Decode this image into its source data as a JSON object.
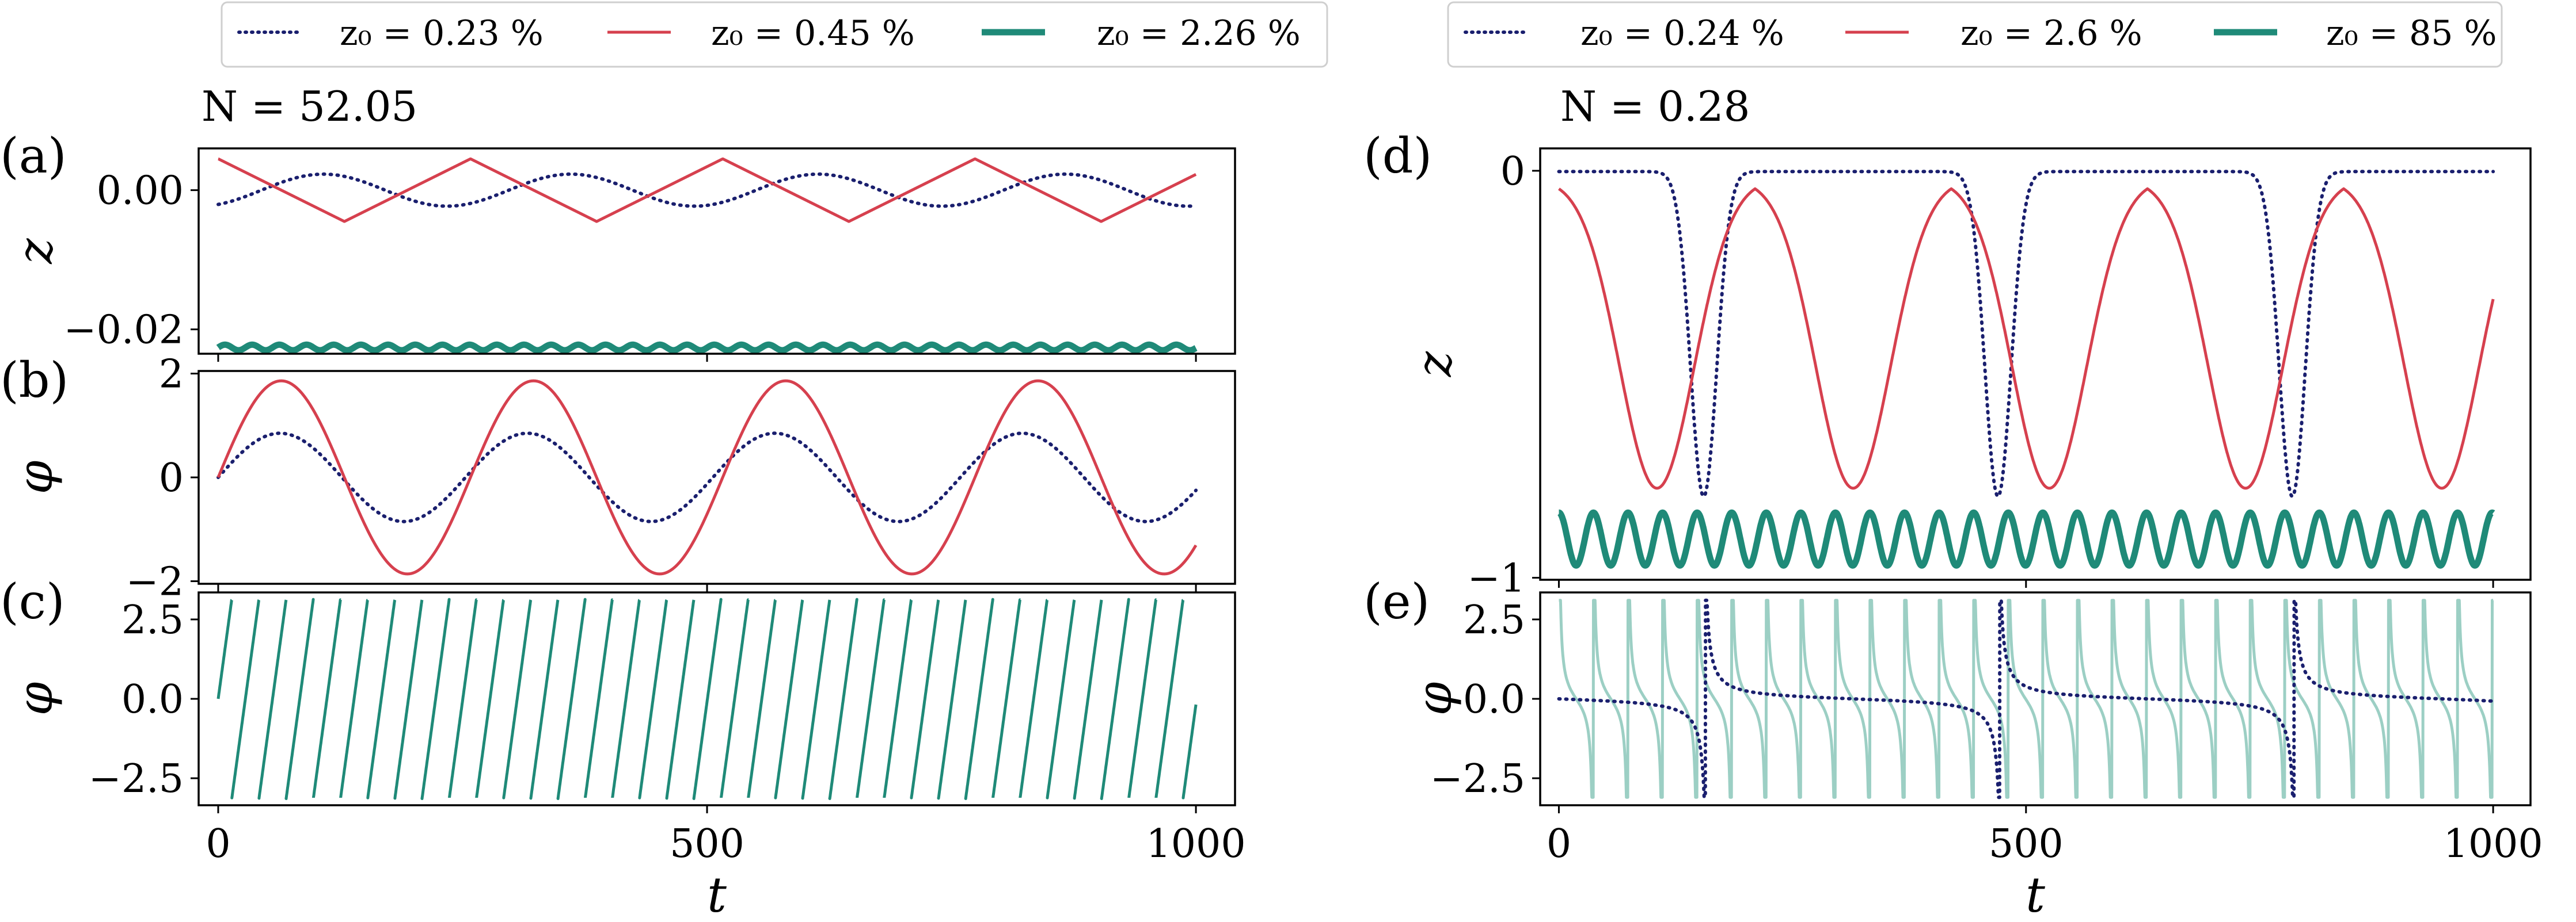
{
  "colors": {
    "navy": "#1a1f6e",
    "red": "#d6404e",
    "teal": "#1f8a78",
    "teal_light": "#9ccfc4"
  },
  "legends": [
    {
      "entries": [
        {
          "label": "z₀ = 0.23 %",
          "color": "#1a1f6e",
          "style": "dotted"
        },
        {
          "label": "z₀ = 0.45 %",
          "color": "#d6404e",
          "style": "solid"
        },
        {
          "label": "z₀ = 2.26 %",
          "color": "#1f8a78",
          "style": "thick"
        }
      ]
    },
    {
      "entries": [
        {
          "label": "z₀ = 0.24 %",
          "color": "#1a1f6e",
          "style": "dotted"
        },
        {
          "label": "z₀ = 2.6 %",
          "color": "#d6404e",
          "style": "solid"
        },
        {
          "label": "z₀ = 85 %",
          "color": "#1f8a78",
          "style": "thick"
        }
      ]
    }
  ],
  "n_labels": [
    "N = 52.05",
    "N = 0.28"
  ],
  "chart_data": [
    {
      "panel": "(a)",
      "type": "line",
      "xlabel": "",
      "ylabel": "z",
      "xlim": [
        -20,
        1040
      ],
      "ylim": [
        -0.0235,
        0.006
      ],
      "yticks": [
        -0.02,
        0.0
      ],
      "ytick_labels": [
        "−0.02",
        "0.00"
      ],
      "series": [
        {
          "name": "z₀ = 0.23 %",
          "kind": "sin",
          "amp": 0.0023,
          "period": 253,
          "phase": -1.1,
          "offset": 0.0,
          "color": "#1a1f6e",
          "style": "dotted"
        },
        {
          "name": "z₀ = 0.45 %",
          "kind": "tri",
          "amp": 0.0045,
          "period": 258,
          "phase": 3.14,
          "offset": 0.0,
          "color": "#d6404e",
          "style": "solid"
        },
        {
          "name": "z₀ = 2.26 %",
          "kind": "sin",
          "amp": 0.0004,
          "period": 27.8,
          "phase": 0.0,
          "offset": -0.0226,
          "color": "#1f8a78",
          "style": "thick"
        }
      ]
    },
    {
      "panel": "(b)",
      "type": "line",
      "xlabel": "",
      "ylabel": "φ",
      "xlim": [
        -20,
        1040
      ],
      "ylim": [
        -2.05,
        2.05
      ],
      "yticks": [
        -2,
        0,
        2
      ],
      "ytick_labels": [
        "−2",
        "0",
        "2"
      ],
      "series": [
        {
          "name": "z₀ = 0.23 %",
          "kind": "sin",
          "amp": 0.85,
          "period": 253,
          "phase": 0.0,
          "offset": 0.0,
          "color": "#1a1f6e",
          "style": "dotted"
        },
        {
          "name": "z₀ = 0.45 %",
          "kind": "sin",
          "amp": 1.86,
          "period": 258,
          "phase": 0.0,
          "offset": 0.0,
          "color": "#d6404e",
          "style": "solid"
        }
      ]
    },
    {
      "panel": "(c)",
      "type": "line",
      "xlabel": "t",
      "ylabel": "φ",
      "xlim": [
        -20,
        1040
      ],
      "ylim": [
        -3.35,
        3.35
      ],
      "xticks": [
        0,
        500,
        1000
      ],
      "xtick_labels": [
        "0",
        "500",
        "1000"
      ],
      "yticks": [
        -2.5,
        0.0,
        2.5
      ],
      "ytick_labels": [
        "−2.5",
        "0.0",
        "2.5"
      ],
      "series": [
        {
          "name": "z₀ = 2.26 %",
          "kind": "saw",
          "period": 27.8,
          "color": "#1f8a78",
          "style": "solid"
        }
      ]
    },
    {
      "panel": "(d)",
      "type": "line",
      "xlabel": "",
      "ylabel": "z",
      "xlim": [
        -20,
        1040
      ],
      "ylim": [
        -1.005,
        0.055
      ],
      "yticks": [
        -1,
        0
      ],
      "ytick_labels": [
        "−1",
        "0"
      ],
      "series": [
        {
          "name": "z₀ = 0.24 %",
          "kind": "dip",
          "depth": 0.8,
          "period": 315,
          "center": 155,
          "width": 14,
          "color": "#1a1f6e",
          "style": "dotted"
        },
        {
          "name": "z₀ = 2.6 %",
          "kind": "dip",
          "depth": 0.78,
          "period": 210,
          "center": 105,
          "width": 40,
          "color": "#d6404e",
          "style": "solid"
        },
        {
          "name": "z₀ = 85 %",
          "kind": "sin",
          "amp": 0.065,
          "period": 37,
          "phase": 1.5708,
          "offset": -0.905,
          "color": "#1f8a78",
          "style": "thick"
        }
      ]
    },
    {
      "panel": "(e)",
      "type": "line",
      "xlabel": "t",
      "ylabel": "φ",
      "xlim": [
        -20,
        1040
      ],
      "ylim": [
        -3.35,
        3.35
      ],
      "xticks": [
        0,
        500,
        1000
      ],
      "xtick_labels": [
        "0",
        "500",
        "1000"
      ],
      "yticks": [
        -2.5,
        0.0,
        2.5
      ],
      "ytick_labels": [
        "−2.5",
        "0.0",
        "2.5"
      ],
      "series": [
        {
          "name": "z₀ = 85 %",
          "kind": "tanwrap",
          "period": 37,
          "scale": 0.55,
          "color": "#9ccfc4",
          "style": "solid"
        },
        {
          "name": "z₀ = 0.24 %",
          "kind": "tanwrap",
          "period": 315,
          "scale": 0.12,
          "shift": 157,
          "color": "#1a1f6e",
          "style": "dotted"
        }
      ]
    }
  ]
}
